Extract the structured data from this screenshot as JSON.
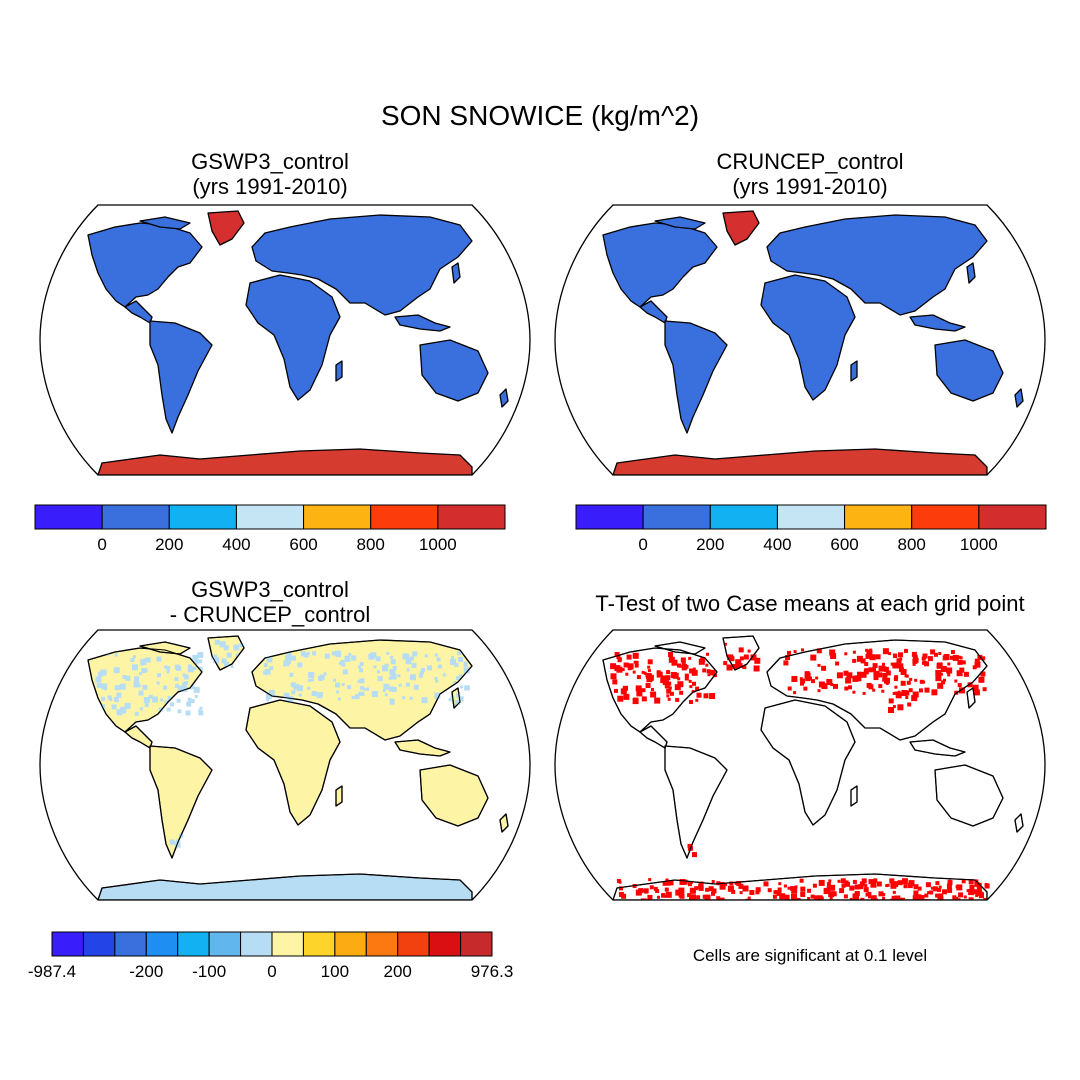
{
  "title": "SON SNOWICE (kg/m^2)",
  "panels": [
    {
      "title": "GSWP3_control\n(yrs 1991-2010)",
      "land_color": "#3a6fde",
      "greenland_color": "#d62f2f",
      "antarctica_color": "#d63b30",
      "colorbar": {
        "colors": [
          "#3a1dfb",
          "#3a6fde",
          "#12b2f2",
          "#c6e5f4",
          "#fdb412",
          "#fc3c0a",
          "#d42d2d"
        ],
        "tick_labels": [
          "0",
          "200",
          "400",
          "600",
          "800",
          "1000"
        ]
      }
    },
    {
      "title": "CRUNCEP_control\n (yrs 1991-2010)",
      "land_color": "#3a6fde",
      "greenland_color": "#d62f2f",
      "antarctica_color": "#d63b30",
      "colorbar": {
        "colors": [
          "#3a1dfb",
          "#3a6fde",
          "#12b2f2",
          "#c6e5f4",
          "#fdb412",
          "#fc3c0a",
          "#d42d2d"
        ],
        "tick_labels": [
          "0",
          "200",
          "400",
          "600",
          "800",
          "1000"
        ]
      }
    },
    {
      "title": "GSWP3_control\n- CRUNCEP_control",
      "land_color": "#fdf4a6",
      "speckle_color": "#b6ddf3",
      "antarctica_color": "#b6ddf3",
      "colorbar": {
        "colors": [
          "#3a1dfb",
          "#2345e8",
          "#3a6fde",
          "#1f8ef3",
          "#12b2f2",
          "#62b6ee",
          "#b6ddf3",
          "#fdf4a6",
          "#fdd42a",
          "#fdab12",
          "#fc7912",
          "#f2400e",
          "#d90f12",
          "#c62a2a"
        ],
        "tick_labels": [
          "-987.4",
          "-200",
          "-100",
          "0",
          "100",
          "200",
          "976.3"
        ]
      }
    },
    {
      "title": "T-Test of two Case means at each grid point",
      "significant_color": "#ff0000",
      "note": "Cells are significant at 0.1 level"
    }
  ]
}
